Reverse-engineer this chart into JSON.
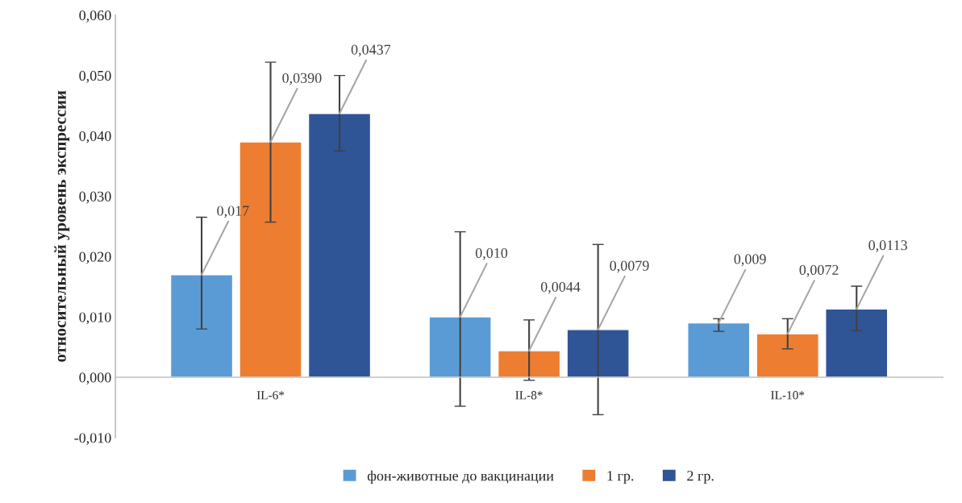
{
  "chart_data": {
    "type": "bar",
    "ylabel": "относительный уровень экспрессии",
    "categories": [
      "IL-6*",
      "IL-8*",
      "IL-10*"
    ],
    "series": [
      {
        "name": "фон-животные до вакцинации",
        "color": "#5b9bd5",
        "values": [
          0.017,
          0.01,
          0.009
        ],
        "value_labels": [
          "0,017",
          "0,010",
          "0,009"
        ],
        "errors": [
          [
            0.008,
            0.0265
          ],
          [
            -0.0048,
            0.0241
          ],
          [
            0.0076,
            0.0097
          ]
        ]
      },
      {
        "name": "1 гр.",
        "color": "#ed7d31",
        "values": [
          0.039,
          0.0044,
          0.0072
        ],
        "value_labels": [
          "0,0390",
          "0,0044",
          "0,0072"
        ],
        "errors": [
          [
            0.0257,
            0.0522
          ],
          [
            -0.0005,
            0.0095
          ],
          [
            0.0047,
            0.0097
          ]
        ]
      },
      {
        "name": "2 гр.",
        "color": "#2f5597",
        "values": [
          0.0437,
          0.0079,
          0.0113
        ],
        "value_labels": [
          "0,0437",
          "0,0079",
          "0,0113"
        ],
        "errors": [
          [
            0.0375,
            0.05
          ],
          [
            -0.0062,
            0.022
          ],
          [
            0.0077,
            0.0151
          ]
        ]
      }
    ],
    "ylim": [
      -0.01,
      0.06
    ],
    "yticks": [
      {
        "value": -0.01,
        "label": "-0,010"
      },
      {
        "value": 0,
        "label": "0,000"
      },
      {
        "value": 0.01,
        "label": "0,010"
      },
      {
        "value": 0.02,
        "label": "0,020"
      },
      {
        "value": 0.03,
        "label": "0,030"
      },
      {
        "value": 0.04,
        "label": "0,040"
      },
      {
        "value": 0.05,
        "label": "0,050"
      },
      {
        "value": 0.06,
        "label": "0,060"
      }
    ],
    "grid": false,
    "legend": "bottom"
  }
}
